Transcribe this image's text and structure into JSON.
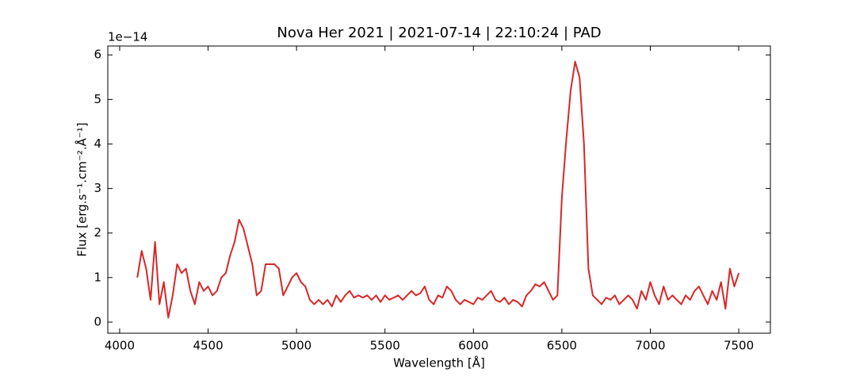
{
  "chart_data": {
    "type": "line",
    "title": "Nova Her 2021 | 2021-07-14 | 22:10:24 | PAD",
    "x_label": "Wavelength [Å]",
    "y_label": "Flux [erg.s⁻¹.cm⁻².Å⁻¹]",
    "y_offset_label": "1e−14",
    "x": [
      4100,
      4125,
      4150,
      4175,
      4200,
      4225,
      4250,
      4275,
      4300,
      4325,
      4350,
      4375,
      4400,
      4425,
      4450,
      4475,
      4500,
      4525,
      4550,
      4575,
      4600,
      4625,
      4650,
      4675,
      4700,
      4725,
      4750,
      4775,
      4800,
      4825,
      4850,
      4875,
      4900,
      4925,
      4950,
      4975,
      5000,
      5025,
      5050,
      5075,
      5100,
      5125,
      5150,
      5175,
      5200,
      5225,
      5250,
      5275,
      5300,
      5325,
      5350,
      5375,
      5400,
      5425,
      5450,
      5475,
      5500,
      5525,
      5550,
      5575,
      5600,
      5625,
      5650,
      5675,
      5700,
      5725,
      5750,
      5775,
      5800,
      5825,
      5850,
      5875,
      5900,
      5925,
      5950,
      5975,
      6000,
      6025,
      6050,
      6075,
      6100,
      6125,
      6150,
      6175,
      6200,
      6225,
      6250,
      6275,
      6300,
      6325,
      6350,
      6375,
      6400,
      6425,
      6450,
      6475,
      6500,
      6525,
      6550,
      6575,
      6600,
      6625,
      6650,
      6675,
      6700,
      6725,
      6750,
      6775,
      6800,
      6825,
      6850,
      6875,
      6900,
      6925,
      6950,
      6975,
      7000,
      7025,
      7050,
      7075,
      7100,
      7125,
      7150,
      7175,
      7200,
      7225,
      7250,
      7275,
      7300,
      7325,
      7350,
      7375,
      7400,
      7425,
      7450,
      7475,
      7500
    ],
    "series": [
      {
        "name": "Flux",
        "color": "#d62728",
        "values": [
          1.0,
          1.6,
          1.2,
          0.5,
          1.8,
          0.4,
          0.9,
          0.1,
          0.6,
          1.3,
          1.1,
          1.2,
          0.7,
          0.4,
          0.9,
          0.7,
          0.8,
          0.6,
          0.7,
          1.0,
          1.1,
          1.5,
          1.8,
          2.3,
          2.1,
          1.7,
          1.3,
          0.6,
          0.7,
          1.3,
          1.3,
          1.3,
          1.2,
          0.6,
          0.8,
          1.0,
          1.1,
          0.9,
          0.8,
          0.5,
          0.4,
          0.5,
          0.4,
          0.5,
          0.35,
          0.6,
          0.45,
          0.6,
          0.7,
          0.55,
          0.6,
          0.55,
          0.6,
          0.5,
          0.6,
          0.45,
          0.6,
          0.5,
          0.55,
          0.6,
          0.5,
          0.6,
          0.7,
          0.6,
          0.65,
          0.8,
          0.5,
          0.4,
          0.6,
          0.55,
          0.8,
          0.7,
          0.5,
          0.4,
          0.5,
          0.45,
          0.4,
          0.55,
          0.5,
          0.6,
          0.7,
          0.5,
          0.45,
          0.55,
          0.4,
          0.5,
          0.45,
          0.35,
          0.6,
          0.7,
          0.85,
          0.8,
          0.9,
          0.7,
          0.5,
          0.6,
          2.8,
          4.1,
          5.2,
          5.85,
          5.5,
          4.0,
          1.2,
          0.6,
          0.5,
          0.4,
          0.55,
          0.5,
          0.6,
          0.4,
          0.5,
          0.6,
          0.5,
          0.3,
          0.7,
          0.5,
          0.9,
          0.6,
          0.4,
          0.8,
          0.5,
          0.6,
          0.5,
          0.4,
          0.6,
          0.5,
          0.7,
          0.8,
          0.6,
          0.4,
          0.7,
          0.5,
          0.9,
          0.3,
          1.2,
          0.8,
          1.1
        ]
      }
    ],
    "xlim": [
      3933,
      7679
    ],
    "ylim": [
      -0.25,
      6.2
    ],
    "xticks": [
      4000,
      4500,
      5000,
      5500,
      6000,
      6500,
      7000,
      7500
    ],
    "yticks": [
      0,
      1,
      2,
      3,
      4,
      5,
      6
    ]
  }
}
